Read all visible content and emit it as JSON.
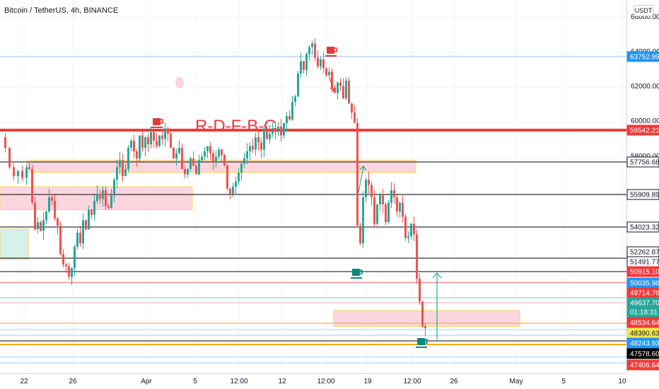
{
  "header": {
    "title": "Bitcoin / TetherUS, 4h, BINANCE",
    "currency": "USDT"
  },
  "annotation": {
    "text": "R-D-F-B-C"
  },
  "colors": {
    "up": "#26a69a",
    "down": "#ef5350",
    "thick_line": "#ef3a3a",
    "zone_fill": "#fcd6df",
    "zone_border": "#f5d563",
    "teal_zone": "#d6f0ea"
  },
  "chart_data": {
    "type": "candlestick",
    "title": "Bitcoin / TetherUS, 4h, BINANCE",
    "y_axis": {
      "min": 47000,
      "max": 66200,
      "labels": [
        "66000.00",
        "64000.00",
        "62000.00",
        "60000.00",
        "58000.00"
      ]
    },
    "x_axis": {
      "labels": [
        "22",
        "26",
        "Apr",
        "5",
        "12:00",
        "12",
        "12:00",
        "19",
        "12:00",
        "26",
        "May",
        "5",
        "10"
      ]
    },
    "price_levels": [
      {
        "value": "63752.99",
        "line_color": "#90c2f0",
        "tag_bg": "#2196f3",
        "tag_fg": "#ffffff",
        "line_width": 1
      },
      {
        "value": "59542.21",
        "line_color": "#f03a3a",
        "tag_bg": "#f03a3a",
        "tag_fg": "#ffffff",
        "line_width": 4
      },
      {
        "value": "57756.68",
        "line_color": "#000000",
        "tag_bg": "#ffffff",
        "tag_fg": "#131722",
        "line_width": 1
      },
      {
        "value": "55909.89",
        "line_color": "#000000",
        "tag_bg": "#ffffff",
        "tag_fg": "#131722",
        "line_width": 1
      },
      {
        "value": "54023.32",
        "line_color": "#000000",
        "tag_bg": "#ffffff",
        "tag_fg": "#131722",
        "line_width": 1
      },
      {
        "value": "52262.87",
        "line_color": "#000000",
        "tag_bg": "#ffffff",
        "tag_fg": "#131722",
        "line_width": 1
      },
      {
        "value": "51491.77",
        "line_color": "#000000",
        "tag_bg": "#ffffff",
        "tag_fg": "#131722",
        "line_width": 1
      },
      {
        "value": "50915.10",
        "line_color": "#000000",
        "tag_bg": "#f03a3a",
        "tag_fg": "#ffffff",
        "line_width": 1
      },
      {
        "value": "50035.98",
        "line_color": "#f2a0a0",
        "tag_bg": "#2196f3",
        "tag_fg": "#ffffff",
        "line_width": 1
      },
      {
        "value": "49714.76",
        "line_color": "#8cc7c2",
        "tag_bg": "#f03a3a",
        "tag_fg": "#ffffff",
        "line_width": 1
      },
      {
        "value": "49637.70",
        "line_color": "#f2a0a0",
        "tag_bg": "#26a69a",
        "tag_fg": "#ffffff",
        "line_width": 1
      },
      {
        "value": "48534.64",
        "line_color": "#f5a623",
        "tag_bg": "#f03a3a",
        "tag_fg": "#ffffff",
        "line_width": 1
      },
      {
        "value": "48390.63",
        "line_color": "#9ecff7",
        "tag_bg": "#f5e84a",
        "tag_fg": "#131722",
        "line_width": 1
      },
      {
        "value": "48243.93",
        "line_color": "#000000",
        "tag_bg": "#2196f3",
        "tag_fg": "#ffffff",
        "line_width": 1
      },
      {
        "value": "47578.60",
        "line_color": "#f5a623",
        "tag_bg": "#000000",
        "tag_fg": "#ffffff",
        "line_width": 2
      },
      {
        "value": "47406.64",
        "line_color": "#9ecff7",
        "tag_bg": "#f03a3a",
        "tag_fg": "#ffffff",
        "line_width": 1
      }
    ],
    "countdown": "01:18:31",
    "current_price": 49637.7,
    "zones": [
      {
        "from": 57200,
        "to": 57900,
        "fill": "#fcd6df",
        "border": "#f5d563"
      },
      {
        "from": 55100,
        "to": 56400,
        "fill": "#fcd6df",
        "border": "#f5d563"
      },
      {
        "from": 52300,
        "to": 54000,
        "fill": "#d6f0ea",
        "border": "#f5d563"
      },
      {
        "from": 48500,
        "to": 49400,
        "fill": "#fcd6df",
        "border": "#f5d563"
      }
    ],
    "candles_summary": "BTC/USDT 4h candles ~March 20 to April 26",
    "markers": [
      {
        "type": "cup",
        "color": "#e53935",
        "price": 60100
      },
      {
        "type": "cup",
        "color": "#e53935",
        "price": 64300
      },
      {
        "type": "cup",
        "color": "#00897b",
        "price": 51200
      },
      {
        "type": "cup",
        "color": "#00897b",
        "price": 48100
      }
    ]
  }
}
